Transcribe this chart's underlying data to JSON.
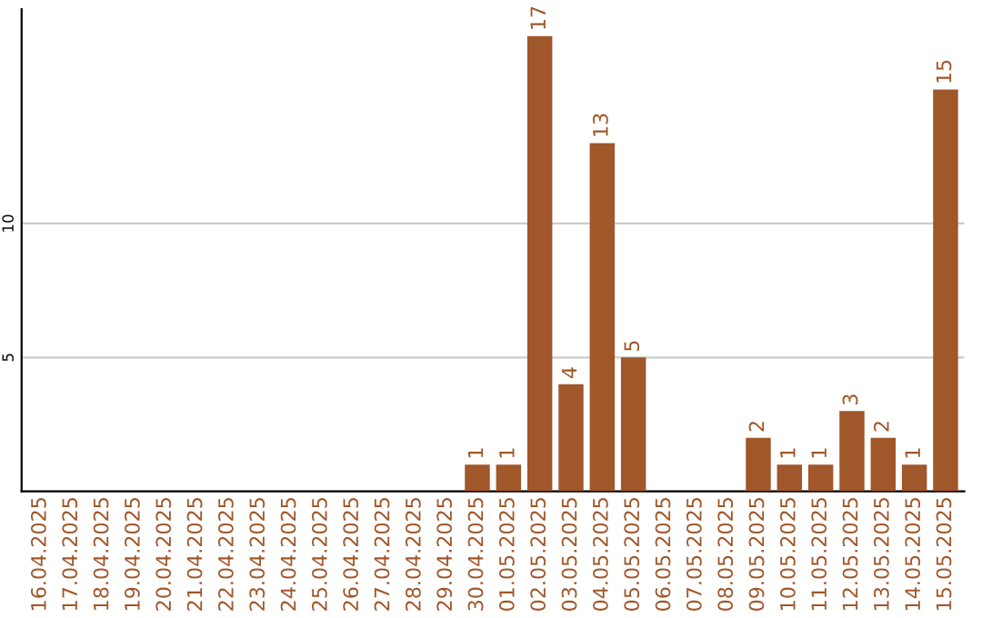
{
  "chart_data": {
    "type": "bar",
    "categories": [
      "16.04.2025",
      "17.04.2025",
      "18.04.2025",
      "19.04.2025",
      "20.04.2025",
      "21.04.2025",
      "22.04.2025",
      "23.04.2025",
      "24.04.2025",
      "25.04.2025",
      "26.04.2025",
      "27.04.2025",
      "28.04.2025",
      "29.04.2025",
      "30.04.2025",
      "01.05.2025",
      "02.05.2025",
      "03.05.2025",
      "04.05.2025",
      "05.05.2025",
      "06.05.2025",
      "07.05.2025",
      "08.05.2025",
      "09.05.2025",
      "10.05.2025",
      "11.05.2025",
      "12.05.2025",
      "13.05.2025",
      "14.05.2025",
      "15.05.2025"
    ],
    "values": [
      0,
      0,
      0,
      0,
      0,
      0,
      0,
      0,
      0,
      0,
      0,
      0,
      0,
      0,
      1,
      1,
      17,
      4,
      13,
      5,
      0,
      0,
      0,
      2,
      1,
      1,
      3,
      2,
      1,
      15
    ],
    "value_labels": [
      null,
      null,
      null,
      null,
      null,
      null,
      null,
      null,
      null,
      null,
      null,
      null,
      null,
      null,
      "1",
      "1",
      "17",
      "4",
      "13",
      "5",
      null,
      null,
      null,
      "2",
      "1",
      "1",
      "3",
      "2",
      "1",
      "15"
    ],
    "color": "#a0572a",
    "ylim": [
      0,
      18
    ],
    "yticks": [
      5,
      10
    ],
    "grid": "y"
  }
}
